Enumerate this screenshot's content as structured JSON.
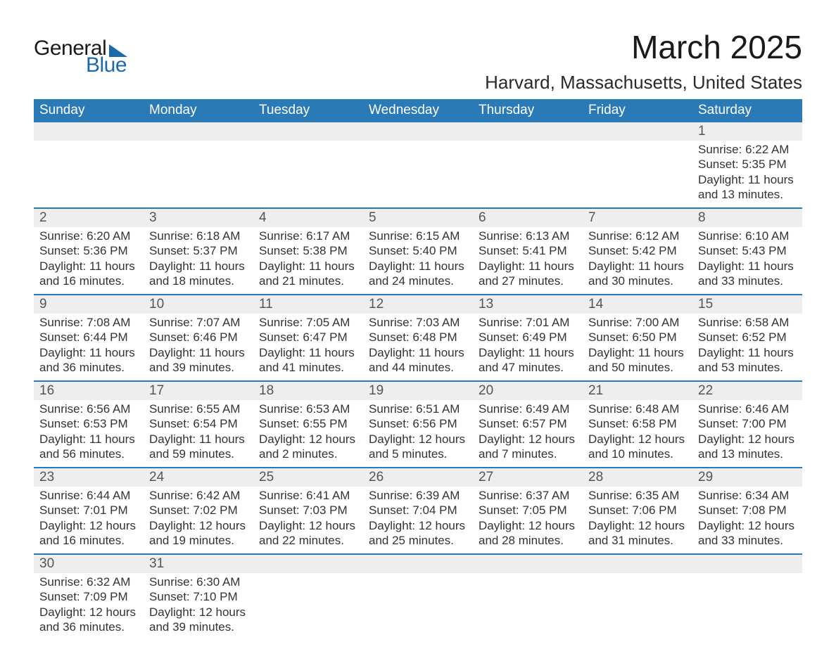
{
  "logo": {
    "word1": "General",
    "word2": "Blue"
  },
  "header": {
    "title": "March 2025",
    "location": "Harvard, Massachusetts, United States"
  },
  "daynames": [
    "Sunday",
    "Monday",
    "Tuesday",
    "Wednesday",
    "Thursday",
    "Friday",
    "Saturday"
  ],
  "colors": {
    "header_bg": "#2b7ab8",
    "header_text": "#ffffff",
    "daynum_bg": "#eeeeee",
    "row_divider": "#2b7ab8",
    "text": "#333333",
    "logo_accent": "#1c69a8"
  },
  "weeks": [
    [
      null,
      null,
      null,
      null,
      null,
      null,
      {
        "n": "1",
        "sunrise": "6:22 AM",
        "sunset": "5:35 PM",
        "daylight": "11 hours and 13 minutes."
      }
    ],
    [
      {
        "n": "2",
        "sunrise": "6:20 AM",
        "sunset": "5:36 PM",
        "daylight": "11 hours and 16 minutes."
      },
      {
        "n": "3",
        "sunrise": "6:18 AM",
        "sunset": "5:37 PM",
        "daylight": "11 hours and 18 minutes."
      },
      {
        "n": "4",
        "sunrise": "6:17 AM",
        "sunset": "5:38 PM",
        "daylight": "11 hours and 21 minutes."
      },
      {
        "n": "5",
        "sunrise": "6:15 AM",
        "sunset": "5:40 PM",
        "daylight": "11 hours and 24 minutes."
      },
      {
        "n": "6",
        "sunrise": "6:13 AM",
        "sunset": "5:41 PM",
        "daylight": "11 hours and 27 minutes."
      },
      {
        "n": "7",
        "sunrise": "6:12 AM",
        "sunset": "5:42 PM",
        "daylight": "11 hours and 30 minutes."
      },
      {
        "n": "8",
        "sunrise": "6:10 AM",
        "sunset": "5:43 PM",
        "daylight": "11 hours and 33 minutes."
      }
    ],
    [
      {
        "n": "9",
        "sunrise": "7:08 AM",
        "sunset": "6:44 PM",
        "daylight": "11 hours and 36 minutes."
      },
      {
        "n": "10",
        "sunrise": "7:07 AM",
        "sunset": "6:46 PM",
        "daylight": "11 hours and 39 minutes."
      },
      {
        "n": "11",
        "sunrise": "7:05 AM",
        "sunset": "6:47 PM",
        "daylight": "11 hours and 41 minutes."
      },
      {
        "n": "12",
        "sunrise": "7:03 AM",
        "sunset": "6:48 PM",
        "daylight": "11 hours and 44 minutes."
      },
      {
        "n": "13",
        "sunrise": "7:01 AM",
        "sunset": "6:49 PM",
        "daylight": "11 hours and 47 minutes."
      },
      {
        "n": "14",
        "sunrise": "7:00 AM",
        "sunset": "6:50 PM",
        "daylight": "11 hours and 50 minutes."
      },
      {
        "n": "15",
        "sunrise": "6:58 AM",
        "sunset": "6:52 PM",
        "daylight": "11 hours and 53 minutes."
      }
    ],
    [
      {
        "n": "16",
        "sunrise": "6:56 AM",
        "sunset": "6:53 PM",
        "daylight": "11 hours and 56 minutes."
      },
      {
        "n": "17",
        "sunrise": "6:55 AM",
        "sunset": "6:54 PM",
        "daylight": "11 hours and 59 minutes."
      },
      {
        "n": "18",
        "sunrise": "6:53 AM",
        "sunset": "6:55 PM",
        "daylight": "12 hours and 2 minutes."
      },
      {
        "n": "19",
        "sunrise": "6:51 AM",
        "sunset": "6:56 PM",
        "daylight": "12 hours and 5 minutes."
      },
      {
        "n": "20",
        "sunrise": "6:49 AM",
        "sunset": "6:57 PM",
        "daylight": "12 hours and 7 minutes."
      },
      {
        "n": "21",
        "sunrise": "6:48 AM",
        "sunset": "6:58 PM",
        "daylight": "12 hours and 10 minutes."
      },
      {
        "n": "22",
        "sunrise": "6:46 AM",
        "sunset": "7:00 PM",
        "daylight": "12 hours and 13 minutes."
      }
    ],
    [
      {
        "n": "23",
        "sunrise": "6:44 AM",
        "sunset": "7:01 PM",
        "daylight": "12 hours and 16 minutes."
      },
      {
        "n": "24",
        "sunrise": "6:42 AM",
        "sunset": "7:02 PM",
        "daylight": "12 hours and 19 minutes."
      },
      {
        "n": "25",
        "sunrise": "6:41 AM",
        "sunset": "7:03 PM",
        "daylight": "12 hours and 22 minutes."
      },
      {
        "n": "26",
        "sunrise": "6:39 AM",
        "sunset": "7:04 PM",
        "daylight": "12 hours and 25 minutes."
      },
      {
        "n": "27",
        "sunrise": "6:37 AM",
        "sunset": "7:05 PM",
        "daylight": "12 hours and 28 minutes."
      },
      {
        "n": "28",
        "sunrise": "6:35 AM",
        "sunset": "7:06 PM",
        "daylight": "12 hours and 31 minutes."
      },
      {
        "n": "29",
        "sunrise": "6:34 AM",
        "sunset": "7:08 PM",
        "daylight": "12 hours and 33 minutes."
      }
    ],
    [
      {
        "n": "30",
        "sunrise": "6:32 AM",
        "sunset": "7:09 PM",
        "daylight": "12 hours and 36 minutes."
      },
      {
        "n": "31",
        "sunrise": "6:30 AM",
        "sunset": "7:10 PM",
        "daylight": "12 hours and 39 minutes."
      },
      null,
      null,
      null,
      null,
      null
    ]
  ],
  "labels": {
    "sunrise": "Sunrise: ",
    "sunset": "Sunset: ",
    "daylight": "Daylight: "
  }
}
